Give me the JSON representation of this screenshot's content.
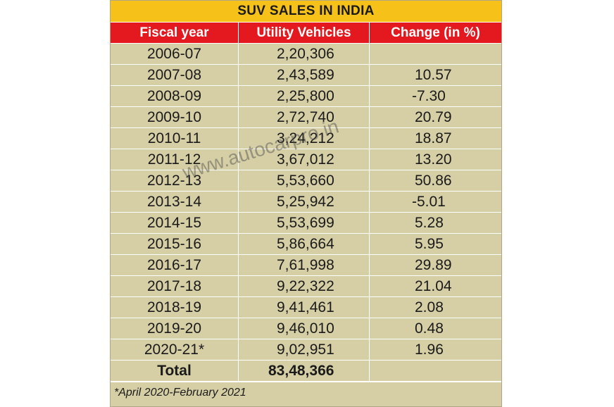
{
  "title": "SUV SALES IN INDIA",
  "headers": [
    "Fiscal year",
    "Utility Vehicles",
    "Change (in %)"
  ],
  "rows": [
    {
      "year": "2006-07",
      "units": "2,20,306",
      "change": ""
    },
    {
      "year": "2007-08",
      "units": "2,43,589",
      "change": "10.57"
    },
    {
      "year": "2008-09",
      "units": "2,25,800",
      "change": "-7.30"
    },
    {
      "year": "2009-10",
      "units": "2,72,740",
      "change": "20.79"
    },
    {
      "year": "2010-11",
      "units": "3,24,212",
      "change": "18.87"
    },
    {
      "year": "2011-12",
      "units": "3,67,012",
      "change": "13.20"
    },
    {
      "year": "2012-13",
      "units": "5,53,660",
      "change": "50.86"
    },
    {
      "year": "2013-14",
      "units": "5,25,942",
      "change": "-5.01"
    },
    {
      "year": "2014-15",
      "units": "5,53,699",
      "change": "5.28"
    },
    {
      "year": "2015-16",
      "units": "5,86,664",
      "change": "5.95"
    },
    {
      "year": "2016-17",
      "units": "7,61,998",
      "change": "29.89"
    },
    {
      "year": "2017-18",
      "units": "9,22,322",
      "change": "21.04"
    },
    {
      "year": "2018-19",
      "units": "9,41,461",
      "change": "2.08"
    },
    {
      "year": "2019-20",
      "units": "9,46,010",
      "change": "0.48"
    },
    {
      "year": "2020-21*",
      "units": "9,02,951",
      "change": "1.96"
    }
  ],
  "total": {
    "label": "Total",
    "units": "83,48,366",
    "change": ""
  },
  "footnote": "*April 2020-February 2021",
  "watermark": "www.autocarpro.in",
  "colors": {
    "title_bg": "#f6c21a",
    "header_bg": "#e3191f",
    "body_bg": "#d6cfa6"
  }
}
